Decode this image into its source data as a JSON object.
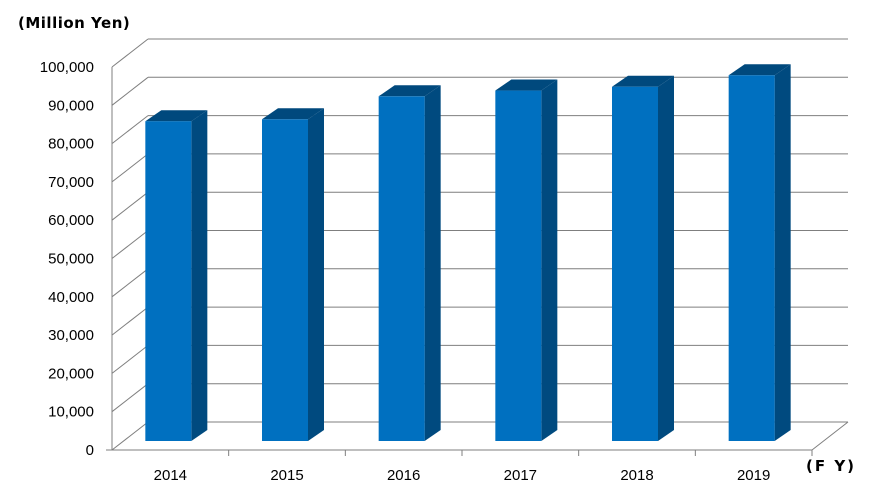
{
  "chart_data": {
    "type": "bar",
    "unit_label": "(Million Yen)",
    "x_unit_label": "(F Y)",
    "categories": [
      "2014",
      "2015",
      "2016",
      "2017",
      "2018",
      "2019"
    ],
    "values": [
      83500,
      84000,
      90000,
      91500,
      92500,
      95500
    ],
    "ylim": [
      0,
      100000
    ],
    "y_ticks": [
      "0",
      "10,000",
      "20,000",
      "30,000",
      "40,000",
      "50,000",
      "60,000",
      "70,000",
      "80,000",
      "90,000",
      "100,000"
    ],
    "grid": true,
    "legend": "none",
    "colors": {
      "front": "#0070C0",
      "side": "#004A7F",
      "top": "#00497D",
      "grid": "#7f7f7f"
    }
  }
}
